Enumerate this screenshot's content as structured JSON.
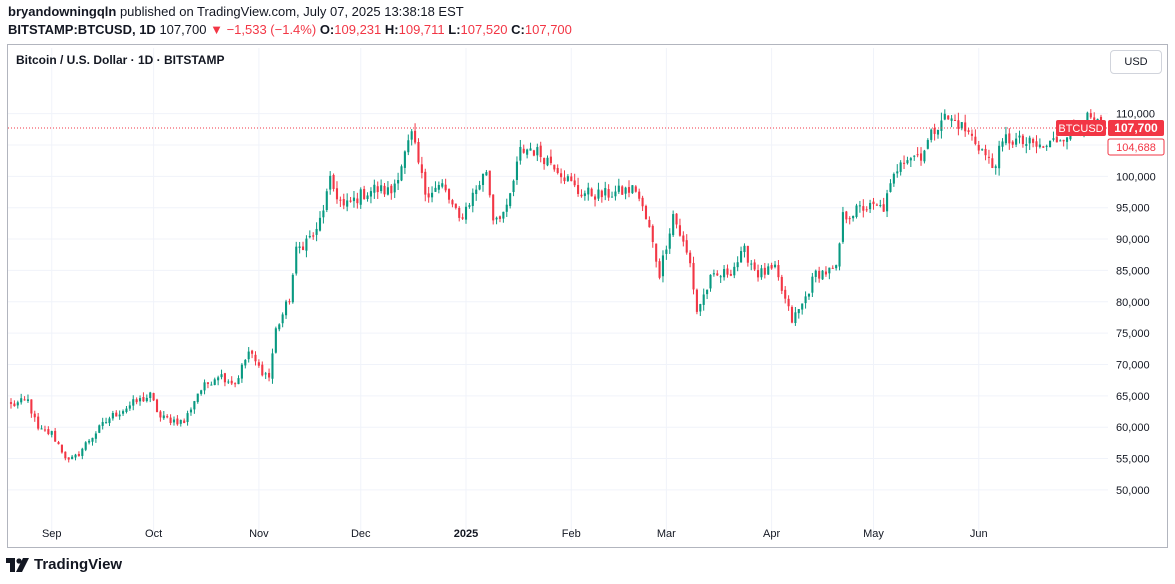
{
  "header": {
    "author": "bryandowningqln",
    "published_text": "published on TradingView.com, July 07, 2025 13:38:18 EST",
    "symbol": "BITSTAMP:BTCUSD, 1D",
    "last": "107,700",
    "change": "−1,533 (−1.4%)",
    "open_label": "O:",
    "open": "109,231",
    "high_label": "H:",
    "high": "109,711",
    "low_label": "L:",
    "low": "107,520",
    "close_label": "C:",
    "close": "107,700"
  },
  "legend_title": "Bitcoin / U.S. Dollar · 1D · BITSTAMP",
  "currency_button": "USD",
  "footer_brand": "TradingView",
  "colors": {
    "up": "#089981",
    "down": "#f23645",
    "grid": "#f0f3fa",
    "axis_text": "#131722"
  },
  "chart_data": {
    "type": "candlestick",
    "y_axis": {
      "ticks": [
        50000,
        55000,
        60000,
        65000,
        70000,
        75000,
        80000,
        85000,
        90000,
        95000,
        100000,
        105000,
        110000
      ],
      "tick_labels": [
        "50,000",
        "55,000",
        "60,000",
        "65,000",
        "70,000",
        "75,000",
        "80,000",
        "85,000",
        "90,000",
        "95,000",
        "100,000",
        "105,000",
        "110,000"
      ],
      "ylim": [
        46000,
        116000
      ]
    },
    "x_axis": {
      "start": "2024-08-20",
      "end": "2025-07-07",
      "labels": [
        {
          "date": "2024-09-01",
          "text": "Sep",
          "bold": false
        },
        {
          "date": "2024-10-01",
          "text": "Oct",
          "bold": false
        },
        {
          "date": "2024-11-01",
          "text": "Nov",
          "bold": false
        },
        {
          "date": "2024-12-01",
          "text": "Dec",
          "bold": false
        },
        {
          "date": "2025-01-01",
          "text": "2025",
          "bold": true
        },
        {
          "date": "2025-02-01",
          "text": "Feb",
          "bold": false
        },
        {
          "date": "2025-03-01",
          "text": "Mar",
          "bold": false
        },
        {
          "date": "2025-04-01",
          "text": "Apr",
          "bold": false
        },
        {
          "date": "2025-05-01",
          "text": "May",
          "bold": false
        },
        {
          "date": "2025-06-01",
          "text": "Jun",
          "bold": false
        }
      ]
    },
    "price_anchors": [
      [
        "2024-08-20",
        63500
      ],
      [
        "2024-08-25",
        64200
      ],
      [
        "2024-08-28",
        59500
      ],
      [
        "2024-09-01",
        59000
      ],
      [
        "2024-09-06",
        54500
      ],
      [
        "2024-09-08",
        55200
      ],
      [
        "2024-09-12",
        58000
      ],
      [
        "2024-09-18",
        61500
      ],
      [
        "2024-09-25",
        63800
      ],
      [
        "2024-09-30",
        65000
      ],
      [
        "2024-10-03",
        61500
      ],
      [
        "2024-10-10",
        60800
      ],
      [
        "2024-10-14",
        65500
      ],
      [
        "2024-10-20",
        68500
      ],
      [
        "2024-10-25",
        67000
      ],
      [
        "2024-10-29",
        72000
      ],
      [
        "2024-11-01",
        69500
      ],
      [
        "2024-11-04",
        68000
      ],
      [
        "2024-11-06",
        75500
      ],
      [
        "2024-11-10",
        80500
      ],
      [
        "2024-11-12",
        88000
      ],
      [
        "2024-11-15",
        89800
      ],
      [
        "2024-11-18",
        91000
      ],
      [
        "2024-11-22",
        99000
      ],
      [
        "2024-11-26",
        95000
      ],
      [
        "2024-12-01",
        97000
      ],
      [
        "2024-12-05",
        98000
      ],
      [
        "2024-12-10",
        97500
      ],
      [
        "2024-12-16",
        106500
      ],
      [
        "2024-12-20",
        97500
      ],
      [
        "2024-12-25",
        98500
      ],
      [
        "2024-12-30",
        93000
      ],
      [
        "2025-01-07",
        101000
      ],
      [
        "2025-01-09",
        93500
      ],
      [
        "2025-01-13",
        94500
      ],
      [
        "2025-01-17",
        104000
      ],
      [
        "2025-01-20",
        104500
      ],
      [
        "2025-01-27",
        102000
      ],
      [
        "2025-02-03",
        97500
      ],
      [
        "2025-02-10",
        97000
      ],
      [
        "2025-02-20",
        98000
      ],
      [
        "2025-02-24",
        91500
      ],
      [
        "2025-02-27",
        84500
      ],
      [
        "2025-03-03",
        94000
      ],
      [
        "2025-03-08",
        86000
      ],
      [
        "2025-03-10",
        78500
      ],
      [
        "2025-03-14",
        83500
      ],
      [
        "2025-03-20",
        85000
      ],
      [
        "2025-03-24",
        88000
      ],
      [
        "2025-03-28",
        84500
      ],
      [
        "2025-04-02",
        85000
      ],
      [
        "2025-04-07",
        77000
      ],
      [
        "2025-04-10",
        79500
      ],
      [
        "2025-04-14",
        84500
      ],
      [
        "2025-04-20",
        85000
      ],
      [
        "2025-04-22",
        93500
      ],
      [
        "2025-04-28",
        95000
      ],
      [
        "2025-05-04",
        95000
      ],
      [
        "2025-05-09",
        103000
      ],
      [
        "2025-05-15",
        103500
      ],
      [
        "2025-05-21",
        109500
      ],
      [
        "2025-05-26",
        108500
      ],
      [
        "2025-06-01",
        105000
      ],
      [
        "2025-06-05",
        101500
      ],
      [
        "2025-06-09",
        106000
      ],
      [
        "2025-06-13",
        105500
      ],
      [
        "2025-06-20",
        104500
      ],
      [
        "2025-06-27",
        107000
      ],
      [
        "2025-07-03",
        109000
      ],
      [
        "2025-07-07",
        107700
      ]
    ],
    "last_price": 107700,
    "last_price_tag": "107,700",
    "symbol_tag": "BTCUSD",
    "secondary_tag": "104,688",
    "secondary_price": 104688
  }
}
